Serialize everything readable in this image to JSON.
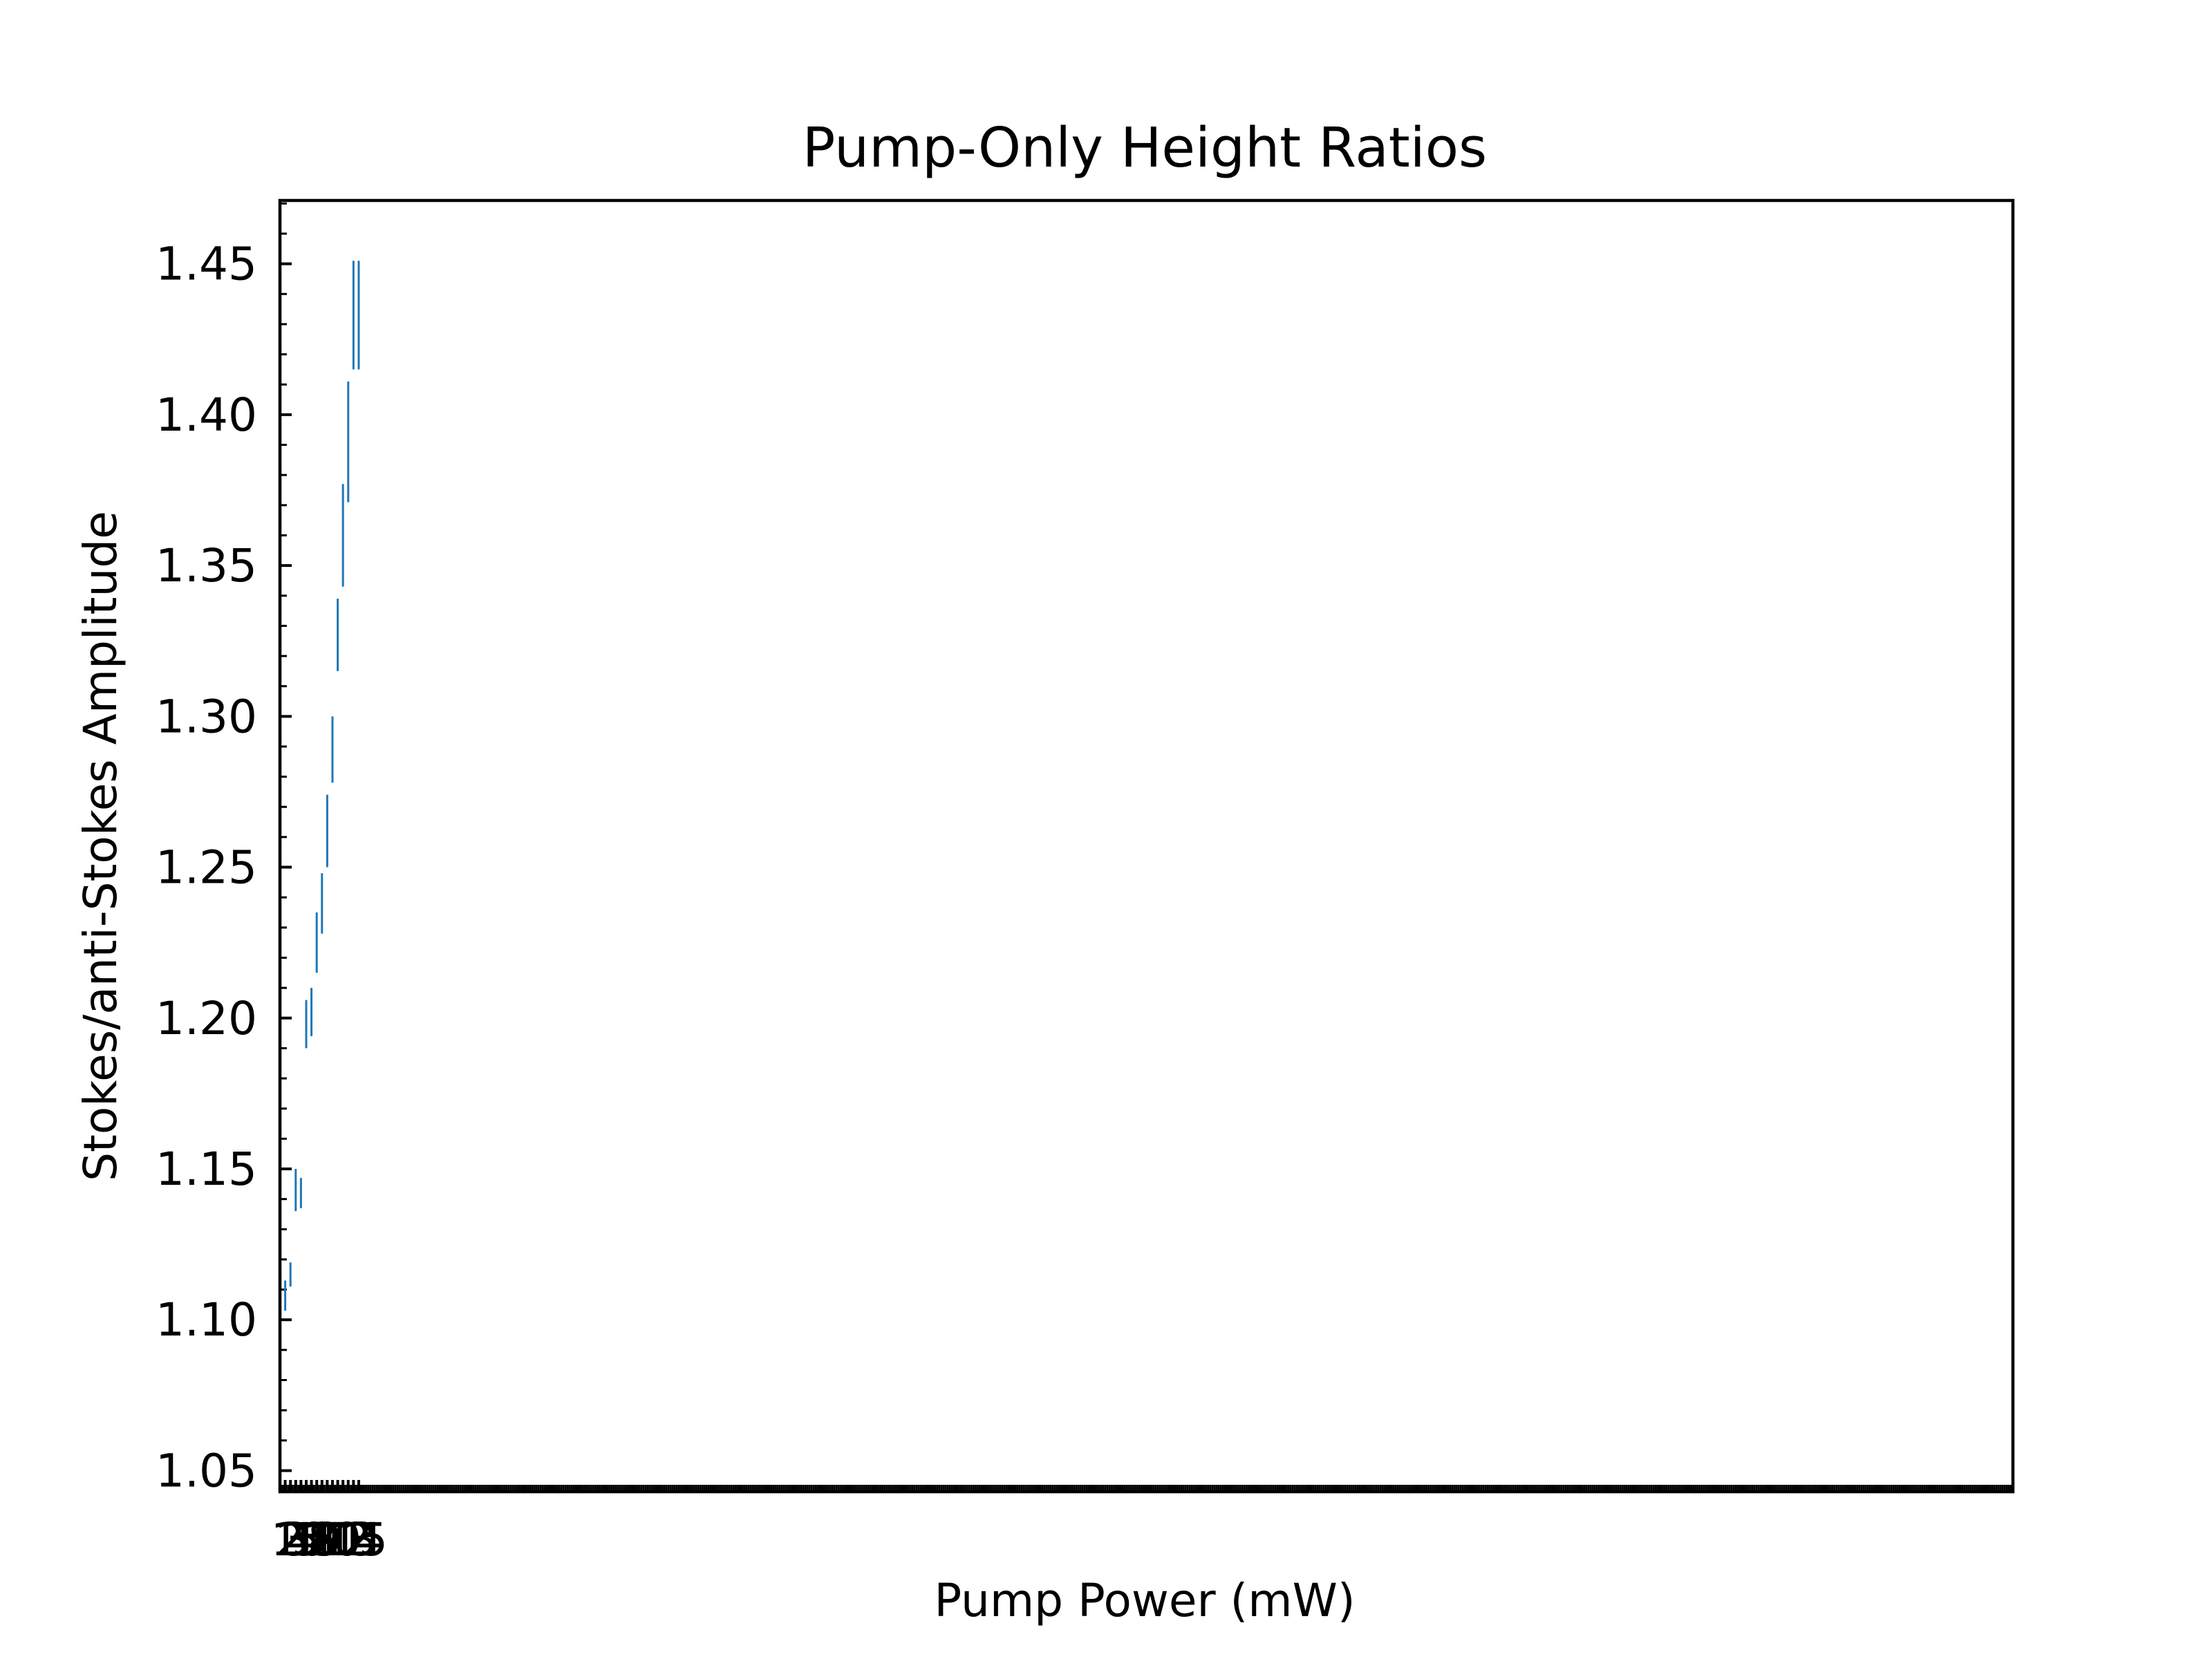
{
  "chart_data": {
    "type": "scatter",
    "title": "Pump-Only Height Ratios",
    "xlabel": "Pump Power (mW)",
    "ylabel": "Stokes/anti-Stokes Amplitude",
    "xlim": [
      0,
      330
    ],
    "ylim": [
      1.043,
      1.471
    ],
    "yticks": [
      1.05,
      1.1,
      1.15,
      1.2,
      1.25,
      1.3,
      1.35,
      1.4,
      1.45
    ],
    "yticklabels": [
      "1.05",
      "1.10",
      "1.15",
      "1.20",
      "1.25",
      "1.30",
      "1.35",
      "1.40",
      "1.45"
    ],
    "xticks": [
      1,
      2,
      3,
      4,
      5,
      6,
      7,
      8,
      9,
      10,
      11,
      12,
      13,
      14,
      15
    ],
    "xticklabels": [
      "1",
      "2",
      "3",
      "4",
      "5",
      "6",
      "7",
      "8",
      "9",
      "10",
      "11",
      "12",
      "13",
      "14",
      "15"
    ],
    "grid": false,
    "marker": "error-bar",
    "color": "#1f77b4",
    "series": [
      {
        "x": [
          1,
          2,
          3,
          4,
          5,
          6,
          7,
          8,
          9,
          10,
          11,
          12,
          13,
          14,
          15
        ],
        "y": [
          1.108,
          1.115,
          1.143,
          1.142,
          1.198,
          1.202,
          1.225,
          1.238,
          1.262,
          1.289,
          1.327,
          1.36,
          1.391,
          1.433,
          1.433
        ],
        "yerr": [
          0.005,
          0.004,
          0.007,
          0.005,
          0.008,
          0.008,
          0.01,
          0.01,
          0.012,
          0.011,
          0.012,
          0.017,
          0.02,
          0.018,
          0.018
        ]
      }
    ]
  }
}
